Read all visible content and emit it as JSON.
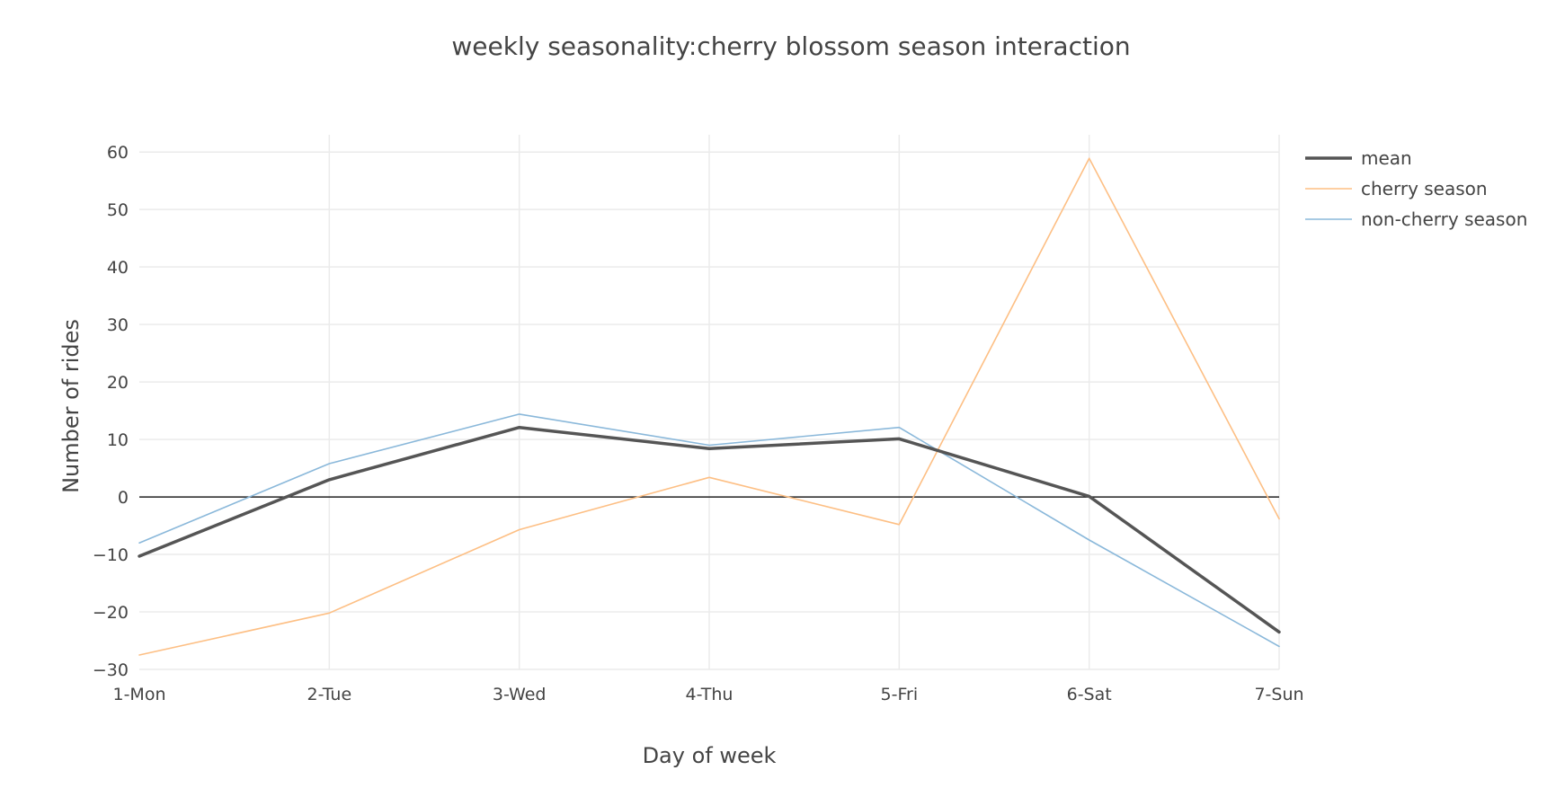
{
  "chart_data": {
    "type": "line",
    "title": "weekly seasonality:cherry blossom season interaction",
    "xlabel": "Day of week",
    "ylabel": "Number of rides",
    "categories": [
      "1-Mon",
      "2-Tue",
      "3-Wed",
      "4-Thu",
      "5-Fri",
      "6-Sat",
      "7-Sun"
    ],
    "ylim": [
      -30,
      63
    ],
    "yticks": [
      60,
      50,
      40,
      30,
      20,
      10,
      0,
      -10,
      -20,
      -30
    ],
    "ytick_labels": [
      "60",
      "50",
      "40",
      "30",
      "20",
      "10",
      "0",
      "−10",
      "−20",
      "−30"
    ],
    "grid": true,
    "zero_line": true,
    "legend_position": "top-right",
    "series": [
      {
        "name": "mean",
        "color": "#555555",
        "values": [
          -10.3,
          3.0,
          12.1,
          8.4,
          10.1,
          0.1,
          -23.5
        ]
      },
      {
        "name": "cherry season",
        "color": "#fdbf84",
        "values": [
          -27.5,
          -20.2,
          -5.7,
          3.4,
          -4.8,
          58.9,
          -3.8
        ]
      },
      {
        "name": "non-cherry season",
        "color": "#8ab8da",
        "values": [
          -8.0,
          5.8,
          14.4,
          9.0,
          12.1,
          -7.5,
          -26.0
        ]
      }
    ]
  }
}
